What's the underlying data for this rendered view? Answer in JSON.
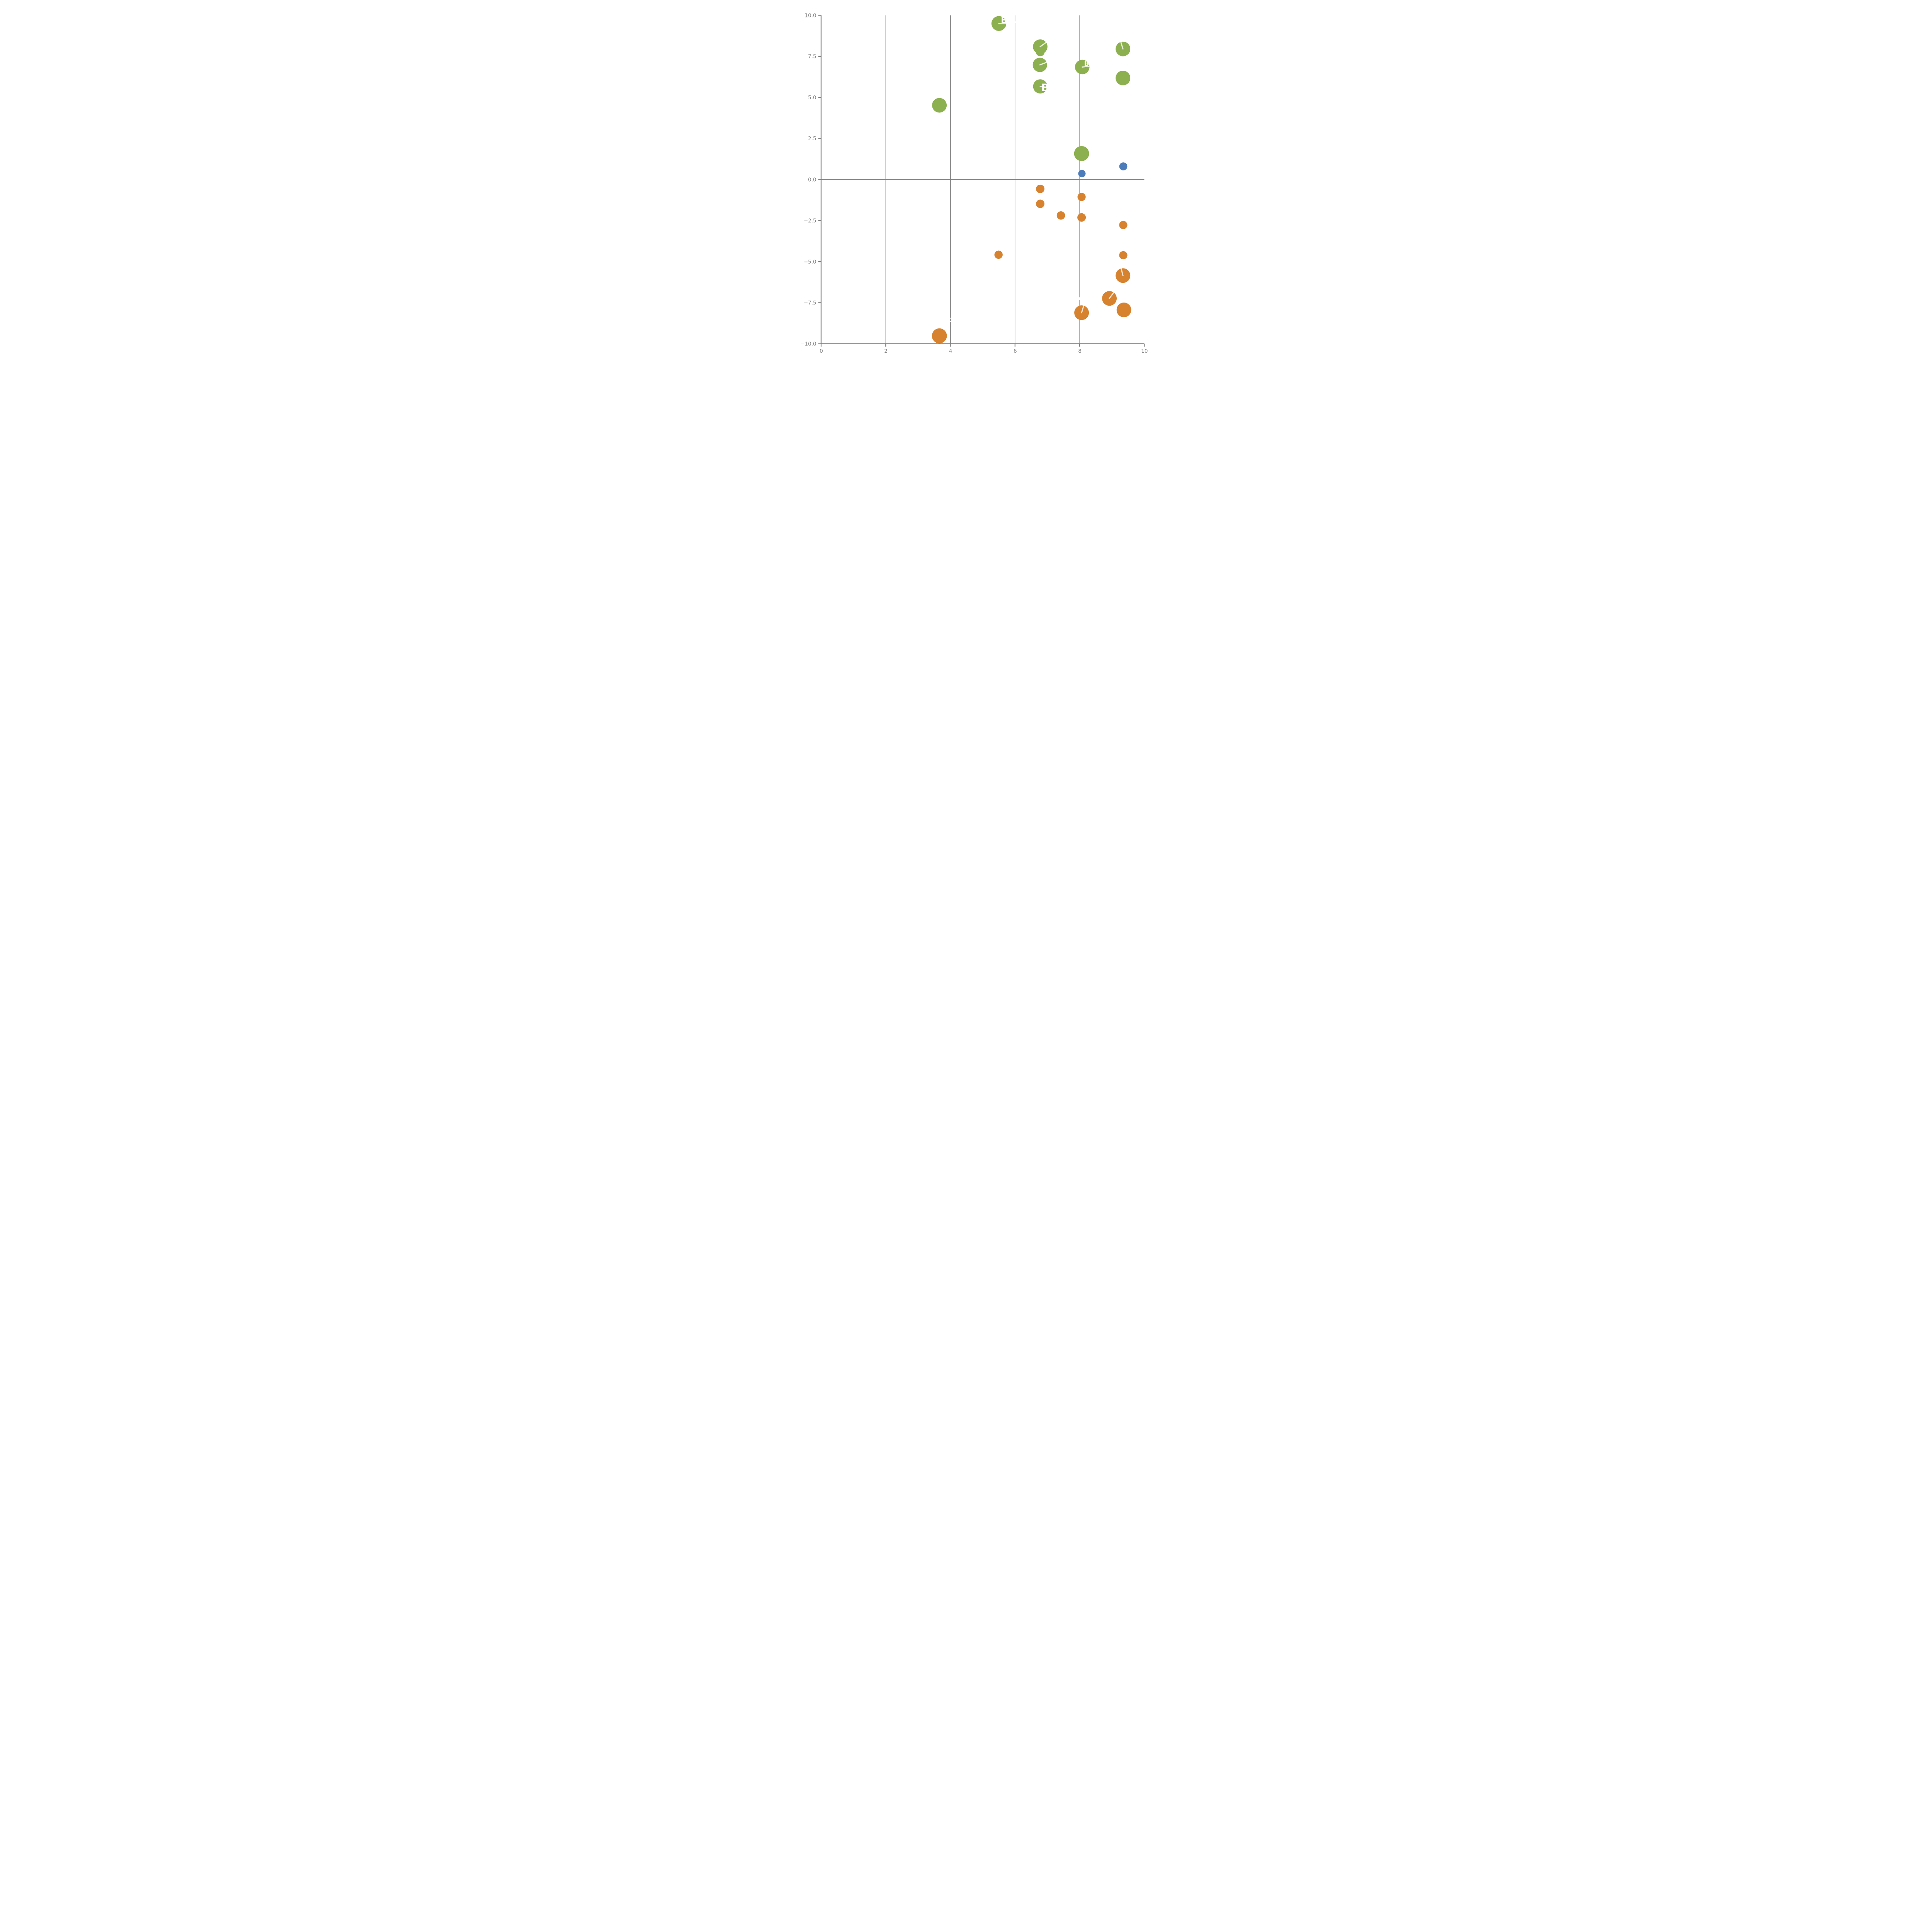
{
  "chart_data": {
    "type": "scatter",
    "title": "",
    "xlabel": "",
    "ylabel": "",
    "xlim": [
      0,
      10
    ],
    "ylim": [
      -10,
      10
    ],
    "grid": "vertical-only",
    "legend": "none",
    "x_ticks": {
      "values": [
        0,
        2,
        4,
        6,
        8,
        10
      ],
      "labels": [
        "0",
        "2",
        "4",
        "6",
        "8",
        "10"
      ]
    },
    "y_ticks": {
      "values": [
        10.0,
        7.5,
        5.0,
        2.5,
        0.0,
        -2.5,
        -5.0,
        -7.5,
        -10.0
      ],
      "labels": [
        "10.0",
        "7.5",
        "5.0",
        "2.5",
        "0.0",
        "−2.5",
        "−5.0",
        "−7.5",
        "−10.0"
      ]
    },
    "grid_x_values": [
      2,
      4,
      6,
      8
    ],
    "zero_line_y": 0.0,
    "styles": {
      "axis_color": "#808080",
      "gridline_color": "#3d3d3d",
      "zero_line_color": "#808080",
      "tick_label_color": "#808080",
      "hand_color_rgba": "rgba(255,255,255,0.78)",
      "background": "#ffffff"
    },
    "series": [
      {
        "name": "green",
        "color": "#8CB04F",
        "points": [
          {
            "x": 5.5,
            "y": 9.5,
            "r": 19.2,
            "hand_angle": 0,
            "letter": "B",
            "letter_dx": 13.4,
            "letter_dy": -8.6,
            "letter_size": 21
          },
          {
            "x": 6.78,
            "y": 8.09,
            "r": 18.8,
            "hand_angle": 36
          },
          {
            "x": 6.78,
            "y": 7.78,
            "r": 11.5
          },
          {
            "x": 9.34,
            "y": 7.95,
            "r": 19.0,
            "hand_angle": 107
          },
          {
            "x": 6.77,
            "y": 6.98,
            "r": 18.6,
            "hand_angle": 21
          },
          {
            "x": 8.08,
            "y": 6.85,
            "r": 18.8,
            "hand_angle": 7,
            "letter": "B",
            "letter_dx": 11.4,
            "letter_dy": -8.4,
            "letter_size": 17.5
          },
          {
            "x": 9.34,
            "y": 6.18,
            "r": 19.0
          },
          {
            "x": 3.66,
            "y": 4.52,
            "r": 19.0
          },
          {
            "x": 6.78,
            "y": 5.67,
            "r": 18.4,
            "hand_angle": -8,
            "letter": "B",
            "letter_dx": 13.0,
            "letter_dy": 3.8,
            "letter_size": 27
          },
          {
            "x": 8.06,
            "y": 1.58,
            "r": 19.4
          }
        ]
      },
      {
        "name": "blue",
        "color": "#4D7CBA",
        "points": [
          {
            "x": 9.35,
            "y": 0.8,
            "r": 10.4
          },
          {
            "x": 8.07,
            "y": 0.36,
            "r": 9.6
          }
        ]
      },
      {
        "name": "orange",
        "color": "#D7822E",
        "points": [
          {
            "x": 6.78,
            "y": -0.57,
            "r": 11.0
          },
          {
            "x": 8.06,
            "y": -1.06,
            "r": 10.6
          },
          {
            "x": 6.78,
            "y": -1.48,
            "r": 11.0
          },
          {
            "x": 7.42,
            "y": -2.19,
            "r": 10.8
          },
          {
            "x": 8.06,
            "y": -2.31,
            "r": 11.0
          },
          {
            "x": 9.35,
            "y": -2.77,
            "r": 10.6
          },
          {
            "x": 5.49,
            "y": -4.58,
            "r": 10.7
          },
          {
            "x": 9.35,
            "y": -4.61,
            "r": 10.6
          },
          {
            "x": 9.34,
            "y": -5.85,
            "r": 19.0,
            "hand_angle": 104
          },
          {
            "x": 8.92,
            "y": -7.24,
            "r": 19.0,
            "hand_angle": 54
          },
          {
            "x": 8.06,
            "y": -8.11,
            "r": 19.0,
            "hand_angle": 73
          },
          {
            "x": 9.37,
            "y": -7.94,
            "r": 19.0
          },
          {
            "x": 3.66,
            "y": -9.52,
            "r": 19.4
          }
        ]
      }
    ],
    "gridline_gaps": [
      {
        "grid_x": 6,
        "y_from": 9.63,
        "y_to": 9.53
      },
      {
        "grid_x": 4,
        "y_from": -8.42,
        "y_to": -8.47
      },
      {
        "grid_x": 4,
        "y_from": -8.63,
        "y_to": -8.68
      },
      {
        "grid_x": 8,
        "y_from": -7.17,
        "y_to": -7.34
      }
    ]
  }
}
